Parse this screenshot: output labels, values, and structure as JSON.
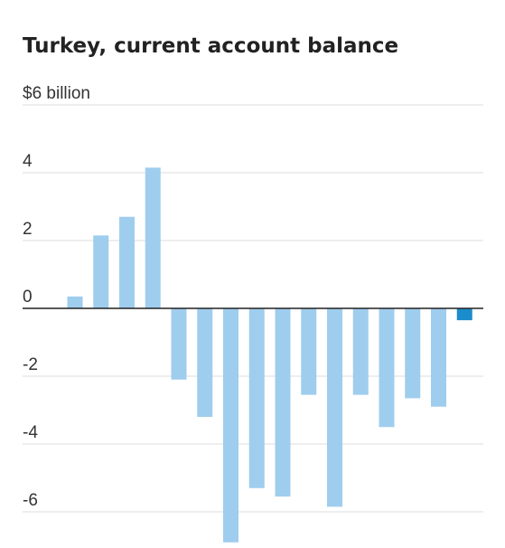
{
  "chart_data": {
    "type": "bar",
    "title": "Turkey, current account balance",
    "y_tick_labels": [
      "$6 billion",
      "4",
      "2",
      "0",
      "-2",
      "-4",
      "-6"
    ],
    "y_ticks": [
      6,
      4,
      2,
      0,
      -2,
      -4,
      -6
    ],
    "ylim": [
      -6.9,
      6
    ],
    "grid": true,
    "values": [
      0.35,
      2.15,
      2.7,
      4.15,
      -2.1,
      -3.2,
      -6.9,
      -5.3,
      -5.55,
      -2.55,
      -5.85,
      -2.55,
      -3.5,
      -2.65,
      -2.9,
      -0.35
    ],
    "highlight_index": 15,
    "colors": {
      "bar": "#9fcdee",
      "highlight": "#1b8ccc",
      "grid": "#dddddd",
      "zero_line": "#222222",
      "text": "#333333"
    }
  }
}
